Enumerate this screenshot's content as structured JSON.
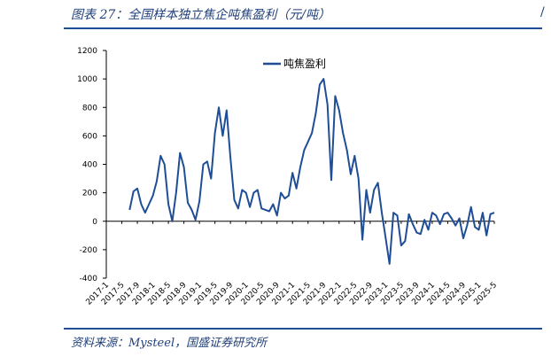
{
  "header": {
    "title": "图表 27：全国样本独立焦企吨焦盈利（元/吨）"
  },
  "footer": {
    "source": "资料来源：Mysteel，国盛证券研究所"
  },
  "chart_data": {
    "type": "line",
    "title": "",
    "xlabel": "",
    "ylabel": "",
    "ylim": [
      -400,
      1200
    ],
    "yticks": [
      -400,
      -200,
      0,
      200,
      400,
      600,
      800,
      1000,
      1200
    ],
    "xlim": [
      "2017-01",
      "2025-05"
    ],
    "xticks": [
      "2017-1",
      "2017-5",
      "2017-9",
      "2018-1",
      "2018-5",
      "2018-9",
      "2019-1",
      "2019-5",
      "2019-9",
      "2020-1",
      "2020-5",
      "2020-9",
      "2021-1",
      "2021-5",
      "2021-9",
      "2022-1",
      "2022-5",
      "2022-9",
      "2023-1",
      "2023-5",
      "2023-9",
      "2024-1",
      "2024-5",
      "2024-9",
      "2025-1",
      "2025-5"
    ],
    "legend_position": "top-center",
    "color": "#1f4e96",
    "series": [
      {
        "name": "吨焦盈利",
        "points": [
          [
            "2017-07",
            80
          ],
          [
            "2017-08",
            210
          ],
          [
            "2017-09",
            230
          ],
          [
            "2017-10",
            120
          ],
          [
            "2017-11",
            60
          ],
          [
            "2017-12",
            120
          ],
          [
            "2018-01",
            180
          ],
          [
            "2018-02",
            280
          ],
          [
            "2018-03",
            460
          ],
          [
            "2018-04",
            400
          ],
          [
            "2018-05",
            120
          ],
          [
            "2018-06",
            0
          ],
          [
            "2018-07",
            200
          ],
          [
            "2018-08",
            480
          ],
          [
            "2018-09",
            380
          ],
          [
            "2018-10",
            130
          ],
          [
            "2018-11",
            80
          ],
          [
            "2018-12",
            10
          ],
          [
            "2019-01",
            140
          ],
          [
            "2019-02",
            400
          ],
          [
            "2019-03",
            420
          ],
          [
            "2019-04",
            300
          ],
          [
            "2019-05",
            620
          ],
          [
            "2019-06",
            800
          ],
          [
            "2019-07",
            600
          ],
          [
            "2019-08",
            780
          ],
          [
            "2019-09",
            440
          ],
          [
            "2019-10",
            150
          ],
          [
            "2019-11",
            90
          ],
          [
            "2019-12",
            220
          ],
          [
            "2020-01",
            200
          ],
          [
            "2020-02",
            100
          ],
          [
            "2020-03",
            200
          ],
          [
            "2020-04",
            220
          ],
          [
            "2020-05",
            90
          ],
          [
            "2020-06",
            80
          ],
          [
            "2020-07",
            70
          ],
          [
            "2020-08",
            120
          ],
          [
            "2020-09",
            40
          ],
          [
            "2020-10",
            200
          ],
          [
            "2020-11",
            160
          ],
          [
            "2020-12",
            180
          ],
          [
            "2021-01",
            340
          ],
          [
            "2021-02",
            230
          ],
          [
            "2021-03",
            380
          ],
          [
            "2021-04",
            500
          ],
          [
            "2021-05",
            560
          ],
          [
            "2021-06",
            620
          ],
          [
            "2021-07",
            760
          ],
          [
            "2021-08",
            960
          ],
          [
            "2021-09",
            1000
          ],
          [
            "2021-10",
            820
          ],
          [
            "2021-11",
            290
          ],
          [
            "2021-12",
            880
          ],
          [
            "2022-01",
            780
          ],
          [
            "2022-02",
            620
          ],
          [
            "2022-03",
            500
          ],
          [
            "2022-04",
            330
          ],
          [
            "2022-05",
            460
          ],
          [
            "2022-06",
            300
          ],
          [
            "2022-07",
            -130
          ],
          [
            "2022-08",
            220
          ],
          [
            "2022-09",
            60
          ],
          [
            "2022-10",
            220
          ],
          [
            "2022-11",
            270
          ],
          [
            "2022-12",
            60
          ],
          [
            "2023-01",
            -120
          ],
          [
            "2023-02",
            -300
          ],
          [
            "2023-03",
            60
          ],
          [
            "2023-04",
            40
          ],
          [
            "2023-05",
            -170
          ],
          [
            "2023-06",
            -140
          ],
          [
            "2023-07",
            50
          ],
          [
            "2023-08",
            -20
          ],
          [
            "2023-09",
            -80
          ],
          [
            "2023-10",
            -90
          ],
          [
            "2023-11",
            10
          ],
          [
            "2023-12",
            -60
          ],
          [
            "2024-01",
            60
          ],
          [
            "2024-02",
            40
          ],
          [
            "2024-03",
            -20
          ],
          [
            "2024-04",
            50
          ],
          [
            "2024-05",
            60
          ],
          [
            "2024-06",
            20
          ],
          [
            "2024-07",
            -30
          ],
          [
            "2024-08",
            20
          ],
          [
            "2024-09",
            -120
          ],
          [
            "2024-10",
            -30
          ],
          [
            "2024-11",
            100
          ],
          [
            "2024-12",
            -40
          ],
          [
            "2025-01",
            -60
          ],
          [
            "2025-02",
            60
          ],
          [
            "2025-03",
            -100
          ],
          [
            "2025-04",
            50
          ],
          [
            "2025-05",
            60
          ]
        ]
      }
    ]
  }
}
